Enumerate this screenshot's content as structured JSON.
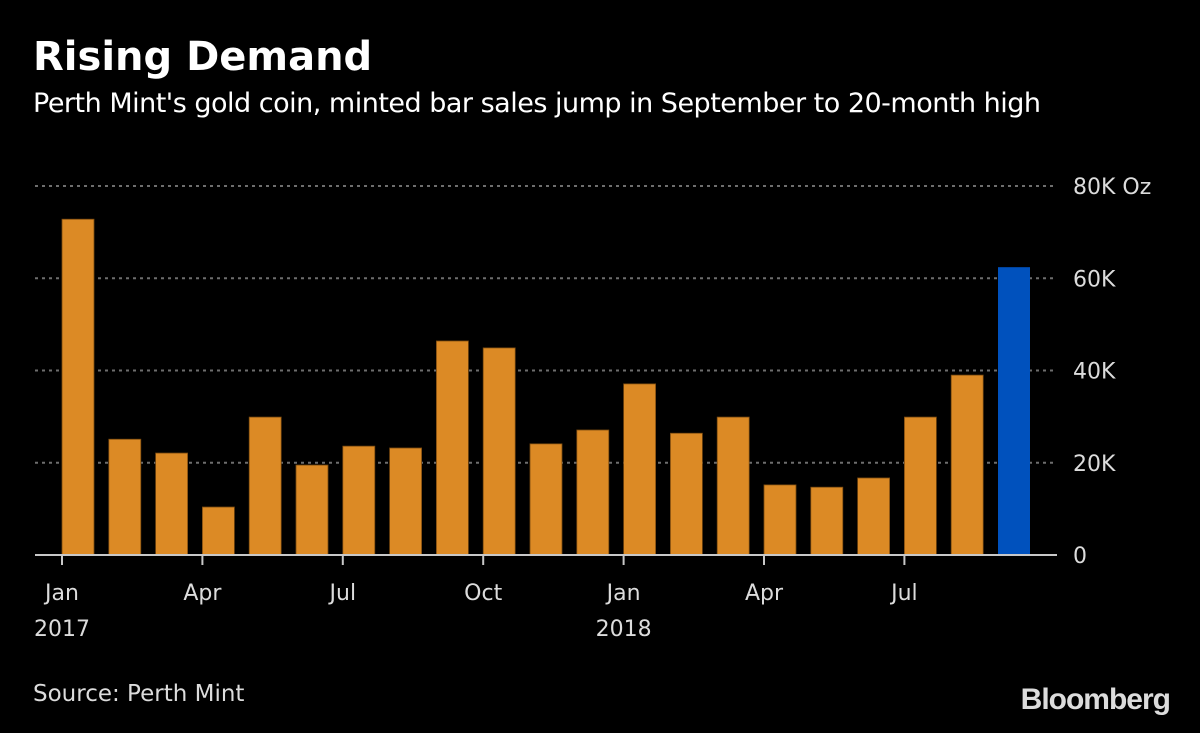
{
  "chart_data": {
    "type": "bar",
    "title": "Rising Demand",
    "subtitle": "Perth Mint's gold coin, minted bar sales jump in September to 20-month high",
    "xlabel": "",
    "ylabel": "Oz",
    "ylim": [
      0,
      80000
    ],
    "yticks": [
      {
        "value": 0,
        "label": "0"
      },
      {
        "value": 20000,
        "label": "20K"
      },
      {
        "value": 40000,
        "label": "40K"
      },
      {
        "value": 60000,
        "label": "60K"
      },
      {
        "value": 80000,
        "label": "80K Oz"
      }
    ],
    "grid": true,
    "categories": [
      "Jan 2017",
      "Feb 2017",
      "Mar 2017",
      "Apr 2017",
      "May 2017",
      "Jun 2017",
      "Jul 2017",
      "Aug 2017",
      "Sep 2017",
      "Oct 2017",
      "Nov 2017",
      "Dec 2017",
      "Jan 2018",
      "Feb 2018",
      "Mar 2018",
      "Apr 2018",
      "May 2018",
      "Jun 2018",
      "Jul 2018",
      "Aug 2018",
      "Sep 2018"
    ],
    "values": [
      72800,
      25100,
      22100,
      10400,
      29900,
      19500,
      23600,
      23200,
      46400,
      44900,
      24100,
      27100,
      37100,
      26400,
      29900,
      15200,
      14700,
      16700,
      29900,
      39000,
      62400
    ],
    "highlight_index": 20,
    "xticks": [
      {
        "index": 0,
        "label": "Jan",
        "year": "2017"
      },
      {
        "index": 3,
        "label": "Apr",
        "year": ""
      },
      {
        "index": 6,
        "label": "Jul",
        "year": ""
      },
      {
        "index": 9,
        "label": "Oct",
        "year": ""
      },
      {
        "index": 12,
        "label": "Jan",
        "year": "2018"
      },
      {
        "index": 15,
        "label": "Apr",
        "year": ""
      },
      {
        "index": 18,
        "label": "Jul",
        "year": ""
      }
    ],
    "colors": {
      "bar": "#dc8a25",
      "highlight": "#0051bd",
      "grid": "#6e6e6e",
      "axis": "#c8c8c8",
      "tick_text": "#dcdcdc"
    }
  },
  "footer": {
    "source": "Source: Perth Mint",
    "logo": "Bloomberg"
  }
}
